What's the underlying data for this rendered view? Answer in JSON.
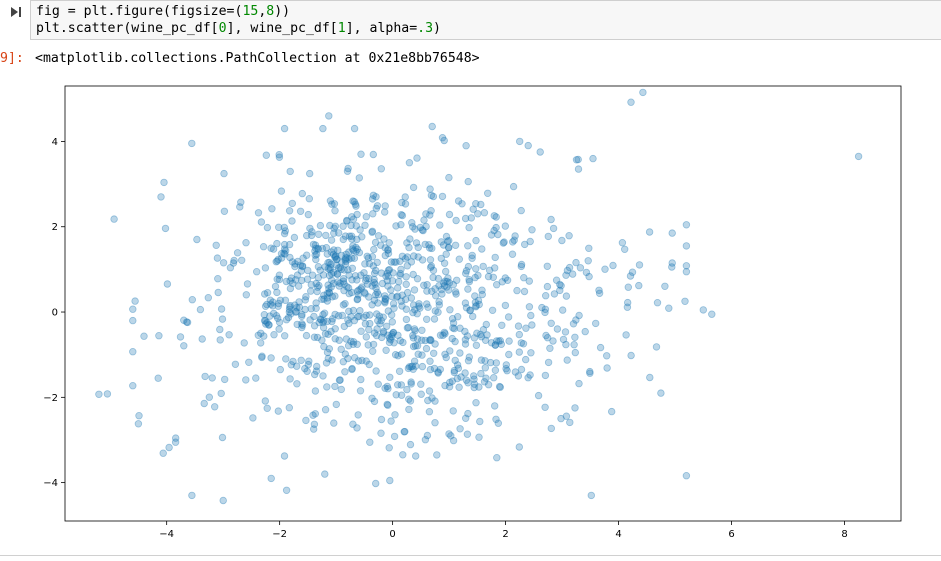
{
  "cell": {
    "code_line1_parts": [
      "fig = plt.figure(figsize=(",
      "15",
      ",",
      "8",
      "))"
    ],
    "code_line2_parts": [
      "plt.scatter(wine_pc_df[",
      "0",
      "], wine_pc_df[",
      "1",
      "], alpha=",
      ".3",
      ")"
    ],
    "output_prompt": "9]:",
    "output_text": "<matplotlib.collections.PathCollection at 0x21e8bb76548>"
  },
  "colors": {
    "marker": "#1f77b4",
    "output_prompt": "#d84315",
    "input_bg": "#f7f7f7"
  },
  "icons": {
    "run": "run-cell-icon"
  },
  "chart_data": {
    "type": "scatter",
    "xlim": [
      -5.8,
      9.0
    ],
    "ylim": [
      -4.9,
      5.3
    ],
    "xticks": [
      "−4",
      "−2",
      "0",
      "2",
      "4",
      "6",
      "8"
    ],
    "yticks": [
      "−4",
      "−2",
      "0",
      "2",
      "4"
    ],
    "xtick_values": [
      -4,
      -2,
      0,
      2,
      4,
      6,
      8
    ],
    "ytick_values": [
      -4,
      -2,
      0,
      2,
      4
    ],
    "alpha": 0.3,
    "grid": false,
    "outliers": [
      [
        8.25,
        3.65
      ],
      [
        4.43,
        5.15
      ],
      [
        4.22,
        4.92
      ],
      [
        -1.13,
        4.6
      ],
      [
        -4.93,
        2.18
      ],
      [
        -5.2,
        -1.93
      ],
      [
        -5.05,
        -1.92
      ],
      [
        -4.5,
        -2.62
      ],
      [
        -3.0,
        -4.42
      ],
      [
        -2.15,
        -3.9
      ],
      [
        -1.2,
        -3.8
      ],
      [
        -0.3,
        -4.02
      ],
      [
        -0.05,
        -3.95
      ],
      [
        5.5,
        0.05
      ],
      [
        5.65,
        -0.05
      ],
      [
        4.95,
        1.15
      ],
      [
        4.95,
        1.85
      ],
      [
        4.75,
        -1.9
      ],
      [
        -4.1,
        2.7
      ],
      [
        0.7,
        4.35
      ],
      [
        1.3,
        3.9
      ],
      [
        2.25,
        4.0
      ]
    ],
    "cloud": {
      "count": 1050,
      "center": [
        0.2,
        0.05
      ],
      "spread": [
        1.95,
        1.55
      ]
    }
  }
}
